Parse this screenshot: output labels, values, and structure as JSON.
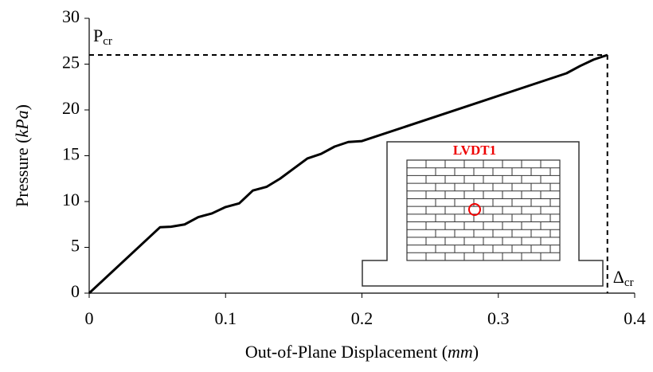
{
  "chart_data": {
    "type": "line",
    "x_label": [
      "Out-of-Plane Displacement (",
      "mm",
      ")"
    ],
    "y_label": [
      "Pressure (",
      "kPa",
      ")"
    ],
    "x": [
      0,
      0.052,
      0.06,
      0.07,
      0.08,
      0.09,
      0.1,
      0.11,
      0.12,
      0.13,
      0.14,
      0.15,
      0.16,
      0.17,
      0.18,
      0.19,
      0.2,
      0.35,
      0.36,
      0.37,
      0.38
    ],
    "series": [
      {
        "color": "#000000",
        "values": [
          0,
          7.2,
          7.25,
          7.5,
          8.3,
          8.7,
          9.4,
          9.8,
          11.2,
          11.6,
          12.5,
          13.6,
          14.7,
          15.2,
          16.0,
          16.5,
          16.6,
          24.0,
          24.8,
          25.5,
          26.0
        ]
      }
    ],
    "xlim": [
      0,
      0.4
    ],
    "xticks": [
      0,
      0.1,
      0.2,
      0.3,
      0.4
    ],
    "ylim": [
      0,
      30
    ],
    "yticks": [
      0,
      5,
      10,
      15,
      20,
      25,
      30
    ],
    "critical": {
      "x": 0.38,
      "y": 26,
      "y_label": {
        "base": "P",
        "sub": "cr"
      },
      "x_label": {
        "base": "Δ",
        "sub": "cr"
      }
    },
    "inset_label": "LVDT1"
  }
}
